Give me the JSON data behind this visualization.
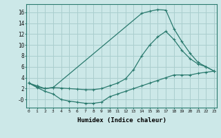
{
  "xlabel": "Humidex (Indice chaleur)",
  "line_color": "#2a7a6e",
  "bg_color": "#cce8e8",
  "grid_color": "#aacece",
  "xlim": [
    -0.3,
    23.3
  ],
  "ylim": [
    -1.5,
    17.5
  ],
  "xticks": [
    0,
    1,
    2,
    3,
    4,
    5,
    6,
    7,
    8,
    9,
    10,
    11,
    12,
    13,
    14,
    15,
    16,
    17,
    18,
    19,
    20,
    21,
    22,
    23
  ],
  "yticks": [
    0,
    2,
    4,
    6,
    8,
    10,
    12,
    14,
    16
  ],
  "ytick_labels": [
    "-0",
    "2",
    "4",
    "6",
    "8",
    "10",
    "12",
    "14",
    "16"
  ],
  "line_max_x": [
    0,
    1,
    2,
    3,
    14,
    15,
    16,
    17,
    18,
    19,
    20,
    21,
    22,
    23
  ],
  "line_max_y": [
    3.0,
    2.3,
    2.0,
    2.2,
    15.8,
    16.2,
    16.5,
    16.4,
    13.0,
    10.6,
    8.5,
    6.8,
    6.0,
    5.2
  ],
  "line_mean_x": [
    0,
    1,
    2,
    3,
    4,
    5,
    6,
    7,
    8,
    9,
    10,
    11,
    12,
    13,
    14,
    15,
    16,
    17,
    18,
    19,
    20,
    21,
    22,
    23
  ],
  "line_mean_y": [
    3.0,
    2.5,
    2.0,
    2.2,
    2.1,
    2.0,
    1.9,
    1.8,
    1.8,
    2.0,
    2.5,
    3.0,
    3.8,
    5.5,
    8.0,
    10.0,
    11.5,
    12.5,
    11.0,
    9.0,
    7.5,
    6.5,
    6.0,
    5.2
  ],
  "line_min_x": [
    0,
    1,
    2,
    3,
    4,
    5,
    6,
    7,
    8,
    9,
    10,
    11,
    12,
    13,
    14,
    15,
    16,
    17,
    18,
    19,
    20,
    21,
    22,
    23
  ],
  "line_min_y": [
    3.0,
    2.2,
    1.5,
    1.0,
    0.0,
    -0.3,
    -0.5,
    -0.7,
    -0.7,
    -0.5,
    0.5,
    1.0,
    1.5,
    2.0,
    2.5,
    3.0,
    3.5,
    4.0,
    4.5,
    4.5,
    4.5,
    4.8,
    5.0,
    5.2
  ]
}
